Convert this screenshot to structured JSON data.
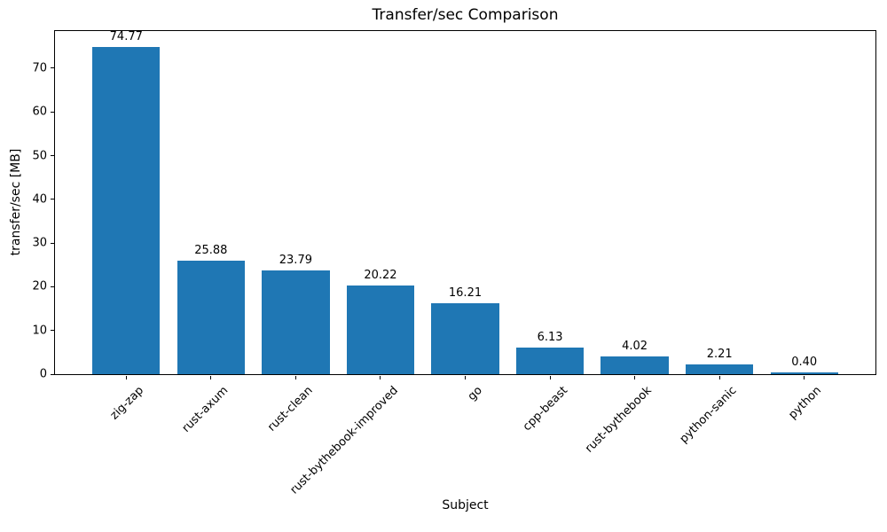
{
  "figure": {
    "background": "#ffffff",
    "text_color": "#000000"
  },
  "chart_data": {
    "type": "bar",
    "title": "Transfer/sec Comparison",
    "xlabel": "Subject",
    "ylabel": "transfer/sec [MB]",
    "categories": [
      "zig-zap",
      "rust-axum",
      "rust-clean",
      "rust-bythebook-improved",
      "go",
      "cpp-beast",
      "rust-bythebook",
      "python-sanic",
      "python"
    ],
    "values": [
      74.77,
      25.88,
      23.79,
      20.22,
      16.21,
      6.13,
      4.02,
      2.21,
      0.4
    ],
    "value_labels": [
      "74.77",
      "25.88",
      "23.79",
      "20.22",
      "16.21",
      "6.13",
      "4.02",
      "2.21",
      "0.40"
    ],
    "bar_color": "#1f77b4",
    "ylim": [
      0,
      78.5
    ],
    "yticks": [
      0,
      10,
      20,
      30,
      40,
      50,
      60,
      70
    ],
    "xtick_rotation_deg": 45,
    "bar_rel_width": 0.8,
    "axis_margin_frac": 0.05,
    "grid": false,
    "legend": null
  }
}
